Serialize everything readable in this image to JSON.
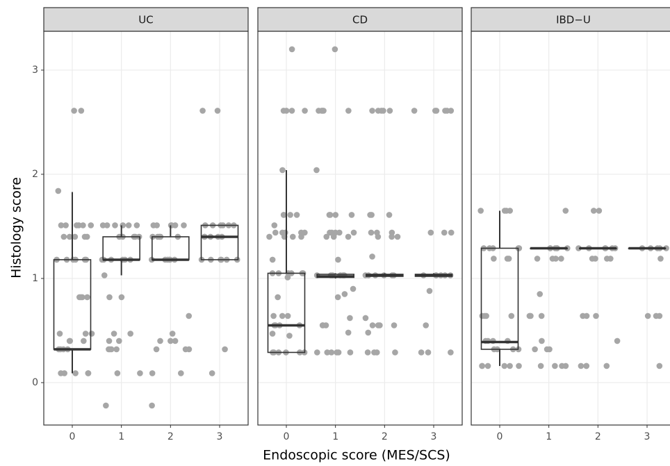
{
  "chart_data": {
    "type": "box",
    "xlabel": "Endoscopic score (MES/SCS)",
    "ylabel": "Histology score",
    "categories": [
      "0",
      "1",
      "2",
      "3"
    ],
    "ylim": [
      -0.407,
      3.373
    ],
    "yticks": [
      0,
      1,
      2,
      3
    ],
    "grid": true,
    "point_color": "#a6a6a6",
    "box_color": "#333333",
    "facets": [
      {
        "title": "UC",
        "boxes": [
          {
            "low": 0.09,
            "q1": 0.32,
            "median": 0.32,
            "q3": 1.18,
            "high": 1.83
          },
          {
            "low": 1.03,
            "q1": 1.18,
            "median": 1.18,
            "q3": 1.4,
            "high": 1.51
          },
          {
            "low": 1.18,
            "q1": 1.18,
            "median": 1.18,
            "q3": 1.4,
            "high": 1.51
          },
          {
            "low": 1.18,
            "q1": 1.18,
            "median": 1.4,
            "q3": 1.51,
            "high": 1.51
          }
        ],
        "points": [
          [
            2.61,
            2.61,
            1.84,
            1.51,
            1.51,
            1.51,
            1.51,
            1.51,
            1.51,
            1.4,
            1.4,
            1.4,
            1.4,
            1.4,
            1.18,
            1.18,
            1.18,
            1.18,
            1.18,
            1.18,
            0.82,
            0.82,
            0.82,
            0.82,
            0.47,
            0.47,
            0.47,
            0.4,
            0.4,
            0.4,
            0.32,
            0.32,
            0.32,
            0.32,
            0.09,
            0.09,
            0.09,
            0.09,
            0.09
          ],
          [
            1.51,
            1.51,
            1.51,
            1.51,
            1.51,
            1.51,
            1.4,
            1.4,
            1.4,
            1.4,
            1.4,
            1.18,
            1.18,
            1.18,
            1.18,
            1.18,
            1.18,
            1.03,
            0.82,
            0.82,
            0.47,
            0.47,
            0.4,
            0.4,
            0.32,
            0.32,
            0.32,
            0.32,
            0.09,
            0.09,
            -0.22
          ],
          [
            1.51,
            1.51,
            1.51,
            1.51,
            1.51,
            1.51,
            1.4,
            1.4,
            1.4,
            1.4,
            1.4,
            1.18,
            1.18,
            1.18,
            1.18,
            1.18,
            1.18,
            0.64,
            0.47,
            0.4,
            0.4,
            0.4,
            0.32,
            0.32,
            0.32,
            0.09,
            0.09,
            -0.22
          ],
          [
            2.61,
            2.61,
            1.51,
            1.51,
            1.51,
            1.51,
            1.51,
            1.51,
            1.4,
            1.4,
            1.4,
            1.4,
            1.4,
            1.18,
            1.18,
            1.18,
            1.18,
            1.18,
            1.18,
            0.32,
            0.09
          ]
        ]
      },
      {
        "title": "CD",
        "boxes": [
          {
            "low": 0.29,
            "q1": 0.29,
            "median": 0.55,
            "q3": 1.05,
            "high": 2.04
          },
          {
            "low": 1.0,
            "q1": 1.01,
            "median": 1.02,
            "q3": 1.04,
            "high": 1.05
          },
          {
            "low": 1.02,
            "q1": 1.02,
            "median": 1.03,
            "q3": 1.04,
            "high": 1.05
          },
          {
            "low": 1.02,
            "q1": 1.02,
            "median": 1.03,
            "q3": 1.04,
            "high": 1.05
          }
        ],
        "points": [
          [
            3.2,
            2.61,
            2.61,
            2.61,
            2.61,
            2.04,
            1.61,
            1.61,
            1.61,
            1.61,
            1.51,
            1.44,
            1.44,
            1.44,
            1.44,
            1.44,
            1.4,
            1.4,
            1.4,
            1.4,
            1.18,
            1.05,
            1.05,
            1.05,
            1.05,
            1.05,
            1.05,
            1.01,
            0.82,
            0.64,
            0.64,
            0.64,
            0.55,
            0.55,
            0.55,
            0.55,
            0.47,
            0.45,
            0.29,
            0.29,
            0.29,
            0.29,
            0.29,
            0.29
          ],
          [
            3.2,
            2.61,
            2.61,
            2.61,
            2.61,
            2.61,
            2.04,
            1.61,
            1.61,
            1.61,
            1.61,
            1.44,
            1.44,
            1.44,
            1.44,
            1.44,
            1.4,
            1.4,
            1.4,
            1.18,
            1.03,
            1.03,
            1.03,
            1.03,
            1.03,
            1.03,
            0.9,
            0.85,
            0.82,
            0.62,
            0.55,
            0.55,
            0.55,
            0.48,
            0.29,
            0.29,
            0.29,
            0.29,
            0.29,
            0.29
          ],
          [
            2.61,
            2.61,
            2.61,
            2.61,
            2.61,
            1.61,
            1.61,
            1.61,
            1.44,
            1.44,
            1.44,
            1.4,
            1.4,
            1.4,
            1.21,
            1.03,
            1.03,
            1.03,
            1.03,
            1.03,
            1.03,
            0.62,
            0.55,
            0.55,
            0.55,
            0.55,
            0.48,
            0.29,
            0.29,
            0.29,
            0.29
          ],
          [
            2.61,
            2.61,
            2.61,
            2.61,
            2.61,
            2.61,
            1.44,
            1.44,
            1.44,
            1.03,
            1.03,
            1.03,
            1.03,
            1.03,
            1.03,
            0.88,
            0.55,
            0.29,
            0.29,
            0.29
          ]
        ]
      },
      {
        "title": "IBD−U",
        "boxes": [
          {
            "low": 0.16,
            "q1": 0.32,
            "median": 0.39,
            "q3": 1.29,
            "high": 1.65
          },
          {
            "low": 1.29,
            "q1": 1.29,
            "median": 1.29,
            "q3": 1.29,
            "high": 1.29
          },
          {
            "low": 1.29,
            "q1": 1.29,
            "median": 1.29,
            "q3": 1.29,
            "high": 1.29
          },
          {
            "low": 1.29,
            "q1": 1.29,
            "median": 1.29,
            "q3": 1.29,
            "high": 1.29
          }
        ],
        "points": [
          [
            1.65,
            1.65,
            1.65,
            1.65,
            1.29,
            1.29,
            1.29,
            1.29,
            1.29,
            1.19,
            1.19,
            1.19,
            0.64,
            0.64,
            0.64,
            0.64,
            0.4,
            0.4,
            0.4,
            0.4,
            0.32,
            0.32,
            0.32,
            0.32,
            0.16,
            0.16,
            0.16,
            0.16,
            0.16,
            0.16
          ],
          [
            1.65,
            1.29,
            1.29,
            1.29,
            1.29,
            1.29,
            1.29,
            1.19,
            1.19,
            1.19,
            1.19,
            0.85,
            0.64,
            0.64,
            0.64,
            0.4,
            0.32,
            0.32,
            0.32,
            0.16,
            0.16,
            0.16,
            0.16
          ],
          [
            1.65,
            1.65,
            1.29,
            1.29,
            1.29,
            1.29,
            1.29,
            1.29,
            1.19,
            1.19,
            1.19,
            1.19,
            0.64,
            0.64,
            0.64,
            0.4,
            0.16,
            0.16,
            0.16,
            0.16
          ],
          [
            1.29,
            1.29,
            1.29,
            1.29,
            1.29,
            1.19,
            0.64,
            0.64,
            0.64,
            0.16
          ]
        ]
      }
    ]
  }
}
